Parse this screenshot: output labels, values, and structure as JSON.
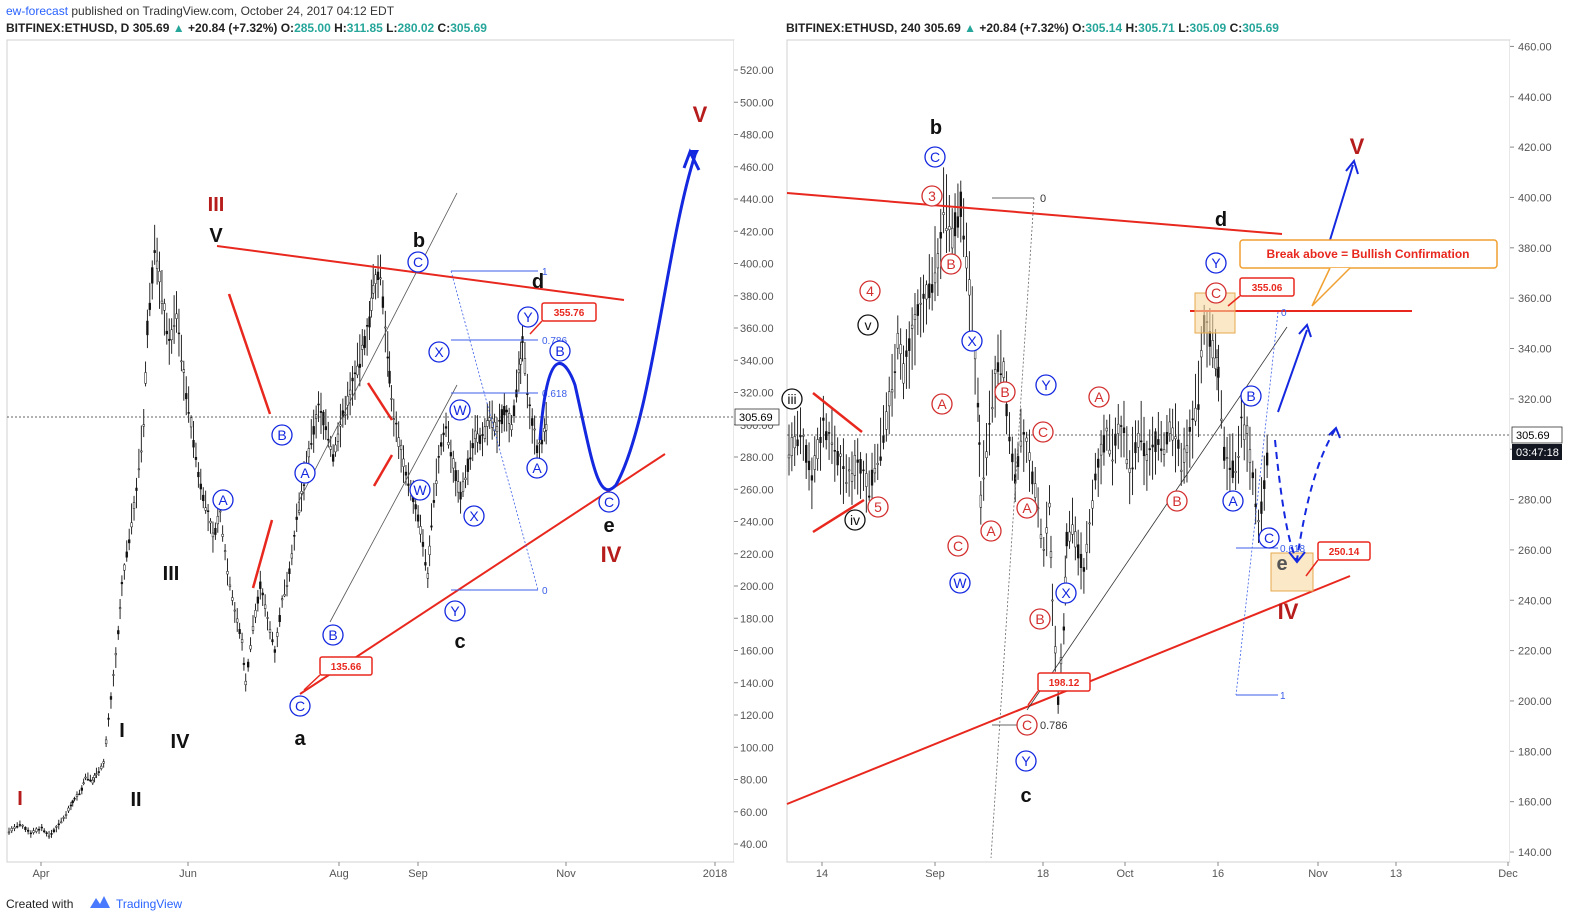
{
  "header": {
    "author": "ew-forecast",
    "published": "published on TradingView.com, October 24, 2017 04:12 EDT"
  },
  "left_symbol": {
    "name": "BITFINEX:ETHUSD, D",
    "price": "305.69",
    "arrow": "▲",
    "change": "+20.84 (+7.32%)",
    "o_label": "O:",
    "o": "285.00",
    "h_label": "H:",
    "h": "311.85",
    "l_label": "L:",
    "l": "280.02",
    "c_label": "C:",
    "c": "305.69"
  },
  "right_symbol": {
    "name": "BITFINEX:ETHUSD, 240",
    "price": "305.69",
    "arrow": "▲",
    "change": "+20.84 (+7.32%)",
    "o_label": "O:",
    "o": "305.14",
    "h_label": "H:",
    "h": "305.71",
    "l_label": "L:",
    "l": "305.09",
    "c_label": "C:",
    "c": "305.69"
  },
  "footer": {
    "created": "Created with",
    "brand": "TradingView"
  },
  "chart_data": [
    {
      "type": "candlestick",
      "symbol": "BITFINEX:ETHUSD",
      "timeframe": "D",
      "ylim": [
        30,
        540
      ],
      "yticks": [
        "40.00",
        "60.00",
        "80.00",
        "100.00",
        "120.00",
        "140.00",
        "160.00",
        "180.00",
        "200.00",
        "220.00",
        "240.00",
        "260.00",
        "280.00",
        "300.00",
        "320.00",
        "340.00",
        "360.00",
        "380.00",
        "400.00",
        "420.00",
        "440.00",
        "460.00",
        "480.00",
        "500.00",
        "520.00"
      ],
      "xticks": [
        "Apr",
        "Jun",
        "Aug",
        "Sep",
        "Nov",
        "2018"
      ],
      "last_price": "305.69",
      "path": [
        [
          0,
          48
        ],
        [
          3,
          52
        ],
        [
          6,
          47
        ],
        [
          9,
          50
        ],
        [
          11,
          45
        ],
        [
          13,
          50
        ],
        [
          15,
          56
        ],
        [
          17,
          64
        ],
        [
          18,
          68
        ],
        [
          20,
          74
        ],
        [
          21,
          82
        ],
        [
          23,
          79
        ],
        [
          24,
          84
        ],
        [
          26,
          90
        ],
        [
          28,
          130
        ],
        [
          30,
          170
        ],
        [
          31,
          200
        ],
        [
          33,
          230
        ],
        [
          35,
          260
        ],
        [
          37,
          300
        ],
        [
          38,
          360
        ],
        [
          40,
          410
        ],
        [
          42,
          380
        ],
        [
          44,
          350
        ],
        [
          46,
          370
        ],
        [
          48,
          330
        ],
        [
          50,
          300
        ],
        [
          52,
          270
        ],
        [
          54,
          250
        ],
        [
          56,
          230
        ],
        [
          58,
          245
        ],
        [
          60,
          210
        ],
        [
          62,
          185
        ],
        [
          64,
          165
        ],
        [
          65,
          140
        ],
        [
          67,
          175
        ],
        [
          69,
          200
        ],
        [
          71,
          180
        ],
        [
          73,
          160
        ],
        [
          75,
          190
        ],
        [
          77,
          210
        ],
        [
          79,
          240
        ],
        [
          81,
          265
        ],
        [
          83,
          290
        ],
        [
          85,
          310
        ],
        [
          87,
          300
        ],
        [
          89,
          280
        ],
        [
          91,
          300
        ],
        [
          93,
          315
        ],
        [
          95,
          330
        ],
        [
          97,
          345
        ],
        [
          99,
          365
        ],
        [
          100,
          385
        ],
        [
          102,
          395
        ],
        [
          104,
          345
        ],
        [
          105,
          315
        ],
        [
          107,
          290
        ],
        [
          109,
          270
        ],
        [
          111,
          255
        ],
        [
          113,
          235
        ],
        [
          115,
          205
        ],
        [
          116,
          240
        ],
        [
          118,
          280
        ],
        [
          120,
          300
        ],
        [
          122,
          275
        ],
        [
          124,
          255
        ],
        [
          126,
          275
        ],
        [
          128,
          295
        ],
        [
          130,
          290
        ],
        [
          132,
          305
        ],
        [
          134,
          295
        ],
        [
          136,
          310
        ],
        [
          138,
          300
        ],
        [
          140,
          330
        ],
        [
          141,
          350
        ],
        [
          143,
          310
        ],
        [
          145,
          285
        ],
        [
          147,
          295
        ],
        [
          148,
          306
        ]
      ],
      "labels": [
        "I",
        "II",
        "III",
        "IV",
        "V",
        "I",
        "II",
        "III",
        "IV",
        "V",
        "a",
        "b",
        "c",
        "d",
        "e",
        "IV",
        "V",
        "A",
        "B",
        "C",
        "A",
        "B",
        "C",
        "W",
        "X",
        "Y",
        "W",
        "X",
        "Y",
        "A",
        "B",
        "C"
      ],
      "boxes": [
        "135.66",
        "355.76"
      ],
      "fib": [
        "1",
        "0.786",
        "0.618",
        "0"
      ]
    },
    {
      "type": "candlestick",
      "symbol": "BITFINEX:ETHUSD",
      "timeframe": "240",
      "ylim": [
        134,
        462
      ],
      "yticks": [
        "140.00",
        "160.00",
        "180.00",
        "200.00",
        "220.00",
        "240.00",
        "260.00",
        "280.00",
        "300.00",
        "320.00",
        "340.00",
        "360.00",
        "380.00",
        "400.00",
        "420.00",
        "440.00",
        "460.00"
      ],
      "xticks": [
        "14",
        "Sep",
        "18",
        "Oct",
        "16",
        "Nov",
        "13",
        "Dec"
      ],
      "last_price": "305.69",
      "countdown": "03:47:18",
      "path": [
        [
          0,
          300
        ],
        [
          4,
          305
        ],
        [
          8,
          290
        ],
        [
          12,
          310
        ],
        [
          16,
          300
        ],
        [
          20,
          288
        ],
        [
          24,
          295
        ],
        [
          28,
          285
        ],
        [
          32,
          300
        ],
        [
          36,
          325
        ],
        [
          38,
          345
        ],
        [
          40,
          330
        ],
        [
          44,
          350
        ],
        [
          48,
          360
        ],
        [
          52,
          375
        ],
        [
          54,
          395
        ],
        [
          57,
          385
        ],
        [
          60,
          398
        ],
        [
          62,
          375
        ],
        [
          64,
          350
        ],
        [
          66,
          320
        ],
        [
          67,
          280
        ],
        [
          69,
          300
        ],
        [
          71,
          320
        ],
        [
          73,
          335
        ],
        [
          75,
          330
        ],
        [
          77,
          305
        ],
        [
          79,
          290
        ],
        [
          81,
          305
        ],
        [
          83,
          300
        ],
        [
          85,
          290
        ],
        [
          87,
          275
        ],
        [
          89,
          260
        ],
        [
          91,
          280
        ],
        [
          92,
          240
        ],
        [
          94,
          200
        ],
        [
          96,
          230
        ],
        [
          97,
          265
        ],
        [
          99,
          270
        ],
        [
          101,
          260
        ],
        [
          103,
          250
        ],
        [
          105,
          270
        ],
        [
          107,
          290
        ],
        [
          109,
          300
        ],
        [
          111,
          305
        ],
        [
          113,
          300
        ],
        [
          115,
          310
        ],
        [
          117,
          305
        ],
        [
          119,
          290
        ],
        [
          121,
          300
        ],
        [
          123,
          305
        ],
        [
          125,
          295
        ],
        [
          127,
          300
        ],
        [
          129,
          305
        ],
        [
          131,
          300
        ],
        [
          133,
          310
        ],
        [
          135,
          305
        ],
        [
          137,
          295
        ],
        [
          139,
          300
        ],
        [
          141,
          310
        ],
        [
          143,
          320
        ],
        [
          145,
          350
        ],
        [
          147,
          345
        ],
        [
          149,
          335
        ],
        [
          150,
          330
        ],
        [
          152,
          300
        ],
        [
          154,
          295
        ],
        [
          156,
          290
        ],
        [
          158,
          310
        ],
        [
          160,
          305
        ],
        [
          162,
          290
        ],
        [
          164,
          270
        ],
        [
          166,
          285
        ],
        [
          168,
          306
        ]
      ],
      "labels": [
        "a",
        "b",
        "c",
        "d",
        "e",
        "IV",
        "V",
        "1",
        "2",
        "3",
        "4",
        "5",
        "i",
        "ii",
        "iii",
        "iv",
        "v",
        "A",
        "B",
        "C",
        "W",
        "X",
        "Y"
      ],
      "boxes": [
        "355.06",
        "250.14",
        "198.12"
      ],
      "annotation": "Break above = Bullish Confirmation",
      "fib": [
        "0",
        "0.786",
        "0.618",
        "1"
      ]
    }
  ]
}
